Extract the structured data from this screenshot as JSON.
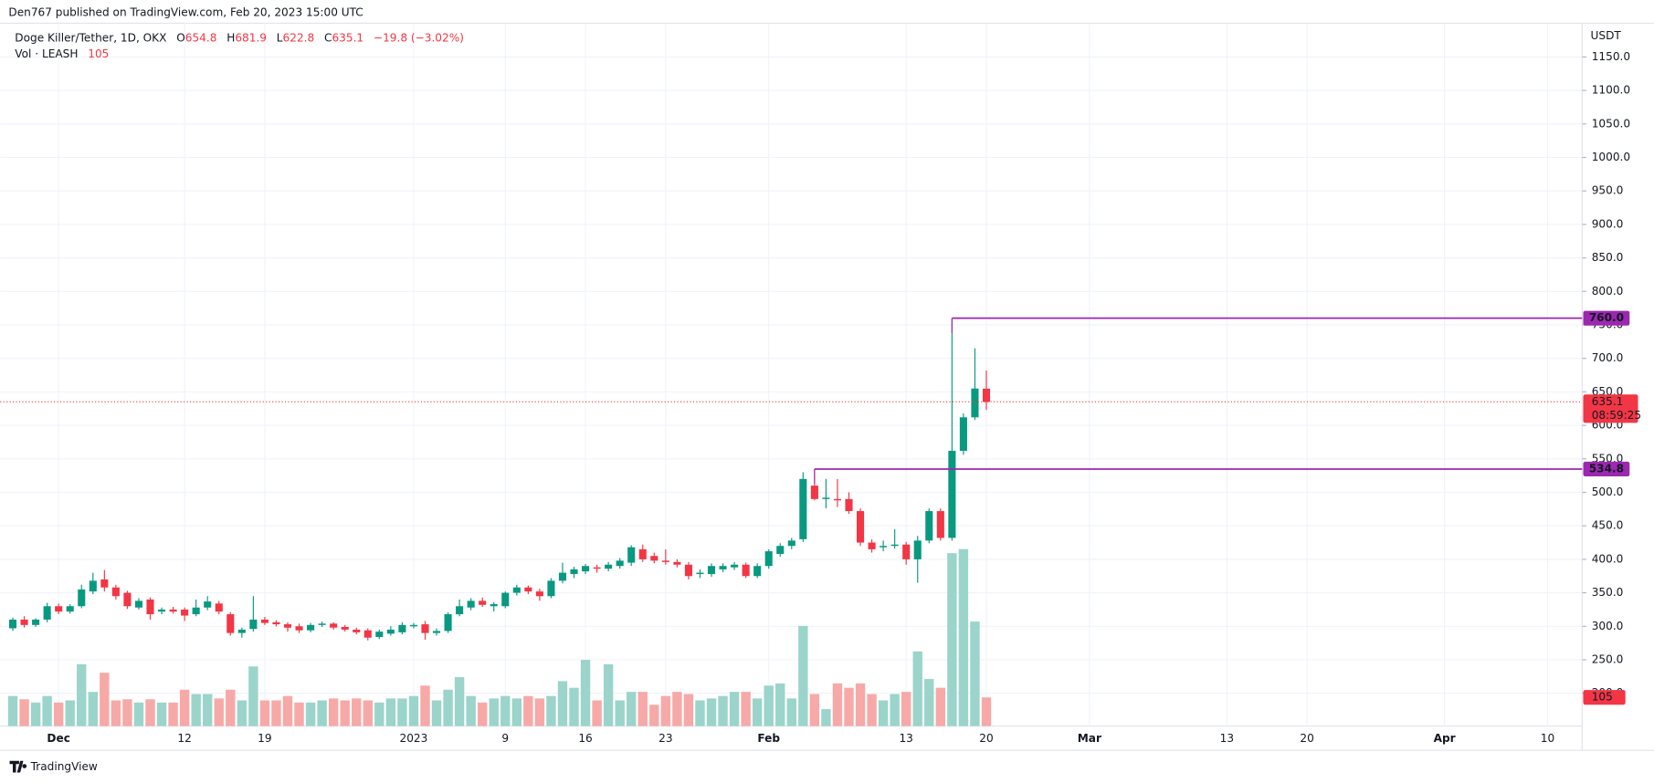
{
  "header": {
    "published": "Den767 published on TradingView.com, Feb 20, 2023 15:00 UTC"
  },
  "footer": {
    "brand": "TradingView"
  },
  "chart_data": {
    "type": "candlestick",
    "legend": {
      "symbol": "Doge Killer/Tether, 1D, OKX",
      "ohlc_labels": [
        "O",
        "H",
        "L",
        "C"
      ],
      "change": "−19.8 (−3.02%)",
      "volume_title": "Vol · LEASH"
    },
    "y_unit": "USDT",
    "countdown": "08:59:25",
    "colors": {
      "up": "#089981",
      "down": "#f23645",
      "volume_up": "#9bd4cb",
      "volume_down": "#f7a9a7",
      "level": "#9c27b0",
      "grid": "#f0f3fa"
    },
    "grid": true,
    "ylim": [
      151,
      1191
    ],
    "yticks": [
      {
        "value": 200,
        "label": "200.0"
      },
      {
        "value": 250,
        "label": "250.0"
      },
      {
        "value": 300,
        "label": "300.0"
      },
      {
        "value": 350,
        "label": "350.0"
      },
      {
        "value": 400,
        "label": "400.0"
      },
      {
        "value": 450,
        "label": "450.0"
      },
      {
        "value": 500,
        "label": "500.0"
      },
      {
        "value": 550,
        "label": "550.0"
      },
      {
        "value": 600,
        "label": "600.0"
      },
      {
        "value": 650,
        "label": "650.0"
      },
      {
        "value": 700,
        "label": "700.0"
      },
      {
        "value": 750,
        "label": "750.0"
      },
      {
        "value": 800,
        "label": "800.0"
      },
      {
        "value": 850,
        "label": "850.0"
      },
      {
        "value": 900,
        "label": "900.0"
      },
      {
        "value": 950,
        "label": "950.0"
      },
      {
        "value": 1000,
        "label": "1000.0"
      },
      {
        "value": 1050,
        "label": "1050.0"
      },
      {
        "value": 1100,
        "label": "1100.0"
      },
      {
        "value": 1150,
        "label": "1150.0"
      }
    ],
    "xticks": [
      {
        "value": "2022-12-01",
        "label": "Dec"
      },
      {
        "value": "2022-12-12",
        "label": "12"
      },
      {
        "value": "2022-12-19",
        "label": "19"
      },
      {
        "value": "2023-01-01",
        "label": "2023"
      },
      {
        "value": "2023-01-09",
        "label": "9"
      },
      {
        "value": "2023-01-16",
        "label": "16"
      },
      {
        "value": "2023-01-23",
        "label": "23"
      },
      {
        "value": "2023-02-01",
        "label": "Feb"
      },
      {
        "value": "2023-02-13",
        "label": "13"
      },
      {
        "value": "2023-02-20",
        "label": "20"
      },
      {
        "value": "2023-03-01",
        "label": "Mar"
      },
      {
        "value": "2023-03-13",
        "label": "13"
      },
      {
        "value": "2023-03-20",
        "label": "20"
      },
      {
        "value": "2023-04-01",
        "label": "Apr"
      },
      {
        "value": "2023-04-10",
        "label": "10"
      }
    ],
    "levels": [
      {
        "value": 760,
        "label": "760.0",
        "start": "2023-02-17"
      },
      {
        "value": 534.8,
        "label": "534.8",
        "start": "2023-02-05"
      }
    ],
    "x": [
      "2022-11-27",
      "2022-11-28",
      "2022-11-29",
      "2022-11-30",
      "2022-12-01",
      "2022-12-02",
      "2022-12-03",
      "2022-12-04",
      "2022-12-05",
      "2022-12-06",
      "2022-12-07",
      "2022-12-08",
      "2022-12-09",
      "2022-12-10",
      "2022-12-11",
      "2022-12-12",
      "2022-12-13",
      "2022-12-14",
      "2022-12-15",
      "2022-12-16",
      "2022-12-17",
      "2022-12-18",
      "2022-12-19",
      "2022-12-20",
      "2022-12-21",
      "2022-12-22",
      "2022-12-23",
      "2022-12-24",
      "2022-12-25",
      "2022-12-26",
      "2022-12-27",
      "2022-12-28",
      "2022-12-29",
      "2022-12-30",
      "2022-12-31",
      "2023-01-01",
      "2023-01-02",
      "2023-01-03",
      "2023-01-04",
      "2023-01-05",
      "2023-01-06",
      "2023-01-07",
      "2023-01-08",
      "2023-01-09",
      "2023-01-10",
      "2023-01-11",
      "2023-01-12",
      "2023-01-13",
      "2023-01-14",
      "2023-01-15",
      "2023-01-16",
      "2023-01-17",
      "2023-01-18",
      "2023-01-19",
      "2023-01-20",
      "2023-01-21",
      "2023-01-22",
      "2023-01-23",
      "2023-01-24",
      "2023-01-25",
      "2023-01-26",
      "2023-01-27",
      "2023-01-28",
      "2023-01-29",
      "2023-01-30",
      "2023-01-31",
      "2023-02-01",
      "2023-02-02",
      "2023-02-03",
      "2023-02-04",
      "2023-02-05",
      "2023-02-06",
      "2023-02-07",
      "2023-02-08",
      "2023-02-09",
      "2023-02-10",
      "2023-02-11",
      "2023-02-12",
      "2023-02-13",
      "2023-02-14",
      "2023-02-15",
      "2023-02-16",
      "2023-02-17",
      "2023-02-18",
      "2023-02-19",
      "2023-02-20"
    ],
    "open": [
      297,
      310,
      302,
      310,
      330,
      322,
      330,
      352,
      370,
      358,
      350,
      328,
      340,
      322,
      325,
      325,
      318,
      328,
      334,
      318,
      290,
      296,
      310,
      306,
      303,
      300,
      294,
      302,
      304,
      299,
      295,
      294,
      284,
      289,
      291,
      300,
      303,
      290,
      293,
      318,
      328,
      338,
      330,
      330,
      350,
      358,
      352,
      345,
      368,
      378,
      382,
      388,
      386,
      390,
      395,
      415,
      405,
      398,
      396,
      392,
      378,
      378,
      385,
      388,
      392,
      375,
      390,
      408,
      420,
      430,
      510,
      490,
      490,
      490,
      472,
      425,
      418,
      420,
      422,
      400,
      428,
      472,
      432,
      562,
      612,
      654.8
    ],
    "high": [
      313,
      315,
      312,
      335,
      334,
      333,
      362,
      380,
      384,
      362,
      353,
      342,
      343,
      328,
      329,
      328,
      340,
      345,
      338,
      321,
      298,
      345,
      314,
      309,
      306,
      304,
      305,
      307,
      306,
      302,
      298,
      297,
      295,
      300,
      306,
      305,
      308,
      297,
      321,
      340,
      342,
      343,
      336,
      352,
      362,
      361,
      356,
      372,
      395,
      389,
      393,
      392,
      396,
      402,
      421,
      422,
      410,
      415,
      400,
      396,
      385,
      394,
      394,
      396,
      395,
      394,
      415,
      424,
      432,
      530,
      534.8,
      520,
      520,
      500,
      476,
      430,
      428,
      445,
      426,
      435,
      476,
      476,
      760,
      618,
      715,
      681.9
    ],
    "low": [
      293,
      298,
      299,
      306,
      318,
      319,
      327,
      348,
      352,
      340,
      326,
      325,
      310,
      318,
      319,
      308,
      315,
      324,
      318,
      286,
      283,
      292,
      302,
      300,
      292,
      290,
      291,
      299,
      295,
      292,
      288,
      279,
      281,
      286,
      288,
      297,
      280,
      286,
      290,
      315,
      324,
      329,
      322,
      327,
      346,
      348,
      338,
      342,
      364,
      372,
      378,
      380,
      382,
      386,
      390,
      396,
      394,
      392,
      388,
      370,
      372,
      374,
      381,
      384,
      372,
      372,
      386,
      404,
      415,
      426,
      488,
      476,
      478,
      468,
      420,
      410,
      412,
      416,
      392,
      365,
      424,
      428,
      428,
      556,
      608,
      622.8
    ],
    "close": [
      310,
      302,
      310,
      330,
      322,
      330,
      355,
      368,
      358,
      345,
      330,
      338,
      318,
      325,
      322,
      316,
      328,
      337,
      322,
      290,
      295,
      310,
      305,
      303,
      298,
      294,
      302,
      304,
      298,
      295,
      291,
      283,
      292,
      295,
      302,
      302,
      290,
      293,
      318,
      330,
      338,
      332,
      333,
      350,
      358,
      352,
      345,
      368,
      380,
      385,
      390,
      386,
      392,
      398,
      418,
      400,
      398,
      396,
      392,
      375,
      380,
      390,
      390,
      392,
      375,
      390,
      412,
      420,
      428,
      520,
      490,
      492,
      488,
      472,
      425,
      415,
      420,
      422,
      400,
      428,
      472,
      432,
      562,
      612,
      655,
      635.1
    ],
    "volume": [
      110,
      98,
      86,
      110,
      86,
      94,
      226,
      125,
      195,
      94,
      98,
      86,
      98,
      86,
      86,
      133,
      117,
      117,
      101,
      133,
      94,
      218,
      94,
      94,
      110,
      86,
      86,
      94,
      101,
      94,
      101,
      94,
      86,
      101,
      101,
      110,
      148,
      94,
      133,
      179,
      110,
      86,
      101,
      110,
      101,
      110,
      101,
      110,
      164,
      140,
      242,
      94,
      226,
      94,
      125,
      125,
      78,
      110,
      125,
      117,
      94,
      101,
      110,
      125,
      125,
      101,
      148,
      156,
      101,
      366,
      117,
      62,
      156,
      140,
      156,
      117,
      94,
      117,
      125,
      273,
      172,
      140,
      632,
      647,
      382,
      105
    ]
  }
}
